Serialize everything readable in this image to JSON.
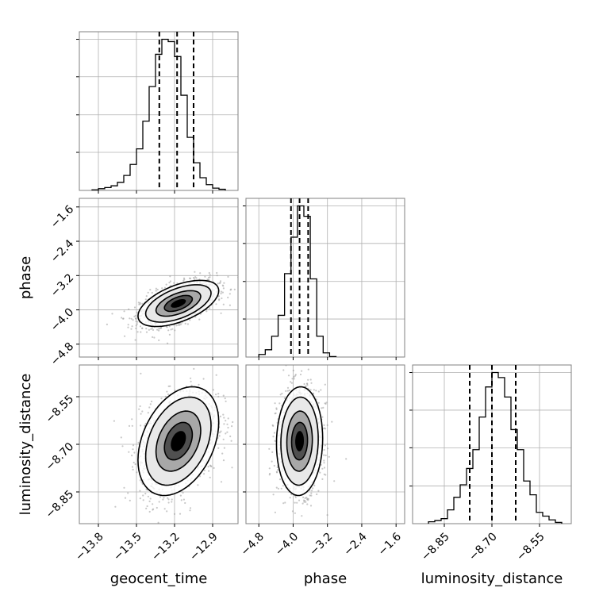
{
  "chart_data": {
    "type": "corner",
    "parameters": [
      {
        "name": "geocent_time",
        "range": [
          -13.95,
          -12.7
        ],
        "ticks": [
          -13.8,
          -13.5,
          -13.2,
          -12.9
        ],
        "tick_labels": [
          "−13.8",
          "−13.5",
          "−13.2",
          "−12.9"
        ],
        "quantiles": [
          -13.32,
          -13.18,
          -13.05
        ],
        "center": -13.17,
        "sd": 0.13
      },
      {
        "name": "phase",
        "range": [
          -5.1,
          -1.4
        ],
        "ticks": [
          -4.8,
          -4.0,
          -3.2,
          -2.4,
          -1.6
        ],
        "tick_labels": [
          "−4.8",
          "−4.0",
          "−3.2",
          "−2.4",
          "−1.6"
        ],
        "quantiles": [
          -4.05,
          -3.85,
          -3.65
        ],
        "center": -3.85,
        "sd": 0.22
      },
      {
        "name": "luminosity_distance",
        "range": [
          -8.95,
          -8.45
        ],
        "ticks": [
          -8.85,
          -8.7,
          -8.55
        ],
        "tick_labels": [
          "−8.85",
          "−8.70",
          "−8.55"
        ],
        "quantiles": [
          -8.77,
          -8.7,
          -8.625
        ],
        "center": -8.69,
        "sd": 0.07
      }
    ],
    "histograms": [
      {
        "param": "geocent_time",
        "edges": [
          -13.85,
          -13.8,
          -13.75,
          -13.7,
          -13.65,
          -13.6,
          -13.55,
          -13.5,
          -13.45,
          -13.4,
          -13.35,
          -13.3,
          -13.25,
          -13.2,
          -13.15,
          -13.1,
          -13.05,
          -13.0,
          -12.95,
          -12.9,
          -12.85,
          -12.8
        ],
        "counts": [
          1,
          3,
          5,
          8,
          14,
          26,
          45,
          72,
          120,
          180,
          236,
          262,
          258,
          232,
          165,
          92,
          48,
          22,
          10,
          4,
          2
        ]
      },
      {
        "param": "phase",
        "edges": [
          -4.8,
          -4.65,
          -4.5,
          -4.35,
          -4.2,
          -4.05,
          -3.9,
          -3.75,
          -3.6,
          -3.45,
          -3.3,
          -3.15,
          -3.0
        ],
        "counts": [
          5,
          14,
          40,
          80,
          160,
          230,
          290,
          270,
          150,
          40,
          8,
          1
        ]
      },
      {
        "param": "luminosity_distance",
        "edges": [
          -8.9,
          -8.88,
          -8.86,
          -8.84,
          -8.82,
          -8.8,
          -8.78,
          -8.76,
          -8.74,
          -8.72,
          -8.7,
          -8.68,
          -8.66,
          -8.64,
          -8.62,
          -8.6,
          -8.58,
          -8.56,
          -8.54,
          -8.52,
          -8.5,
          -8.48
        ],
        "counts": [
          3,
          5,
          8,
          22,
          42,
          62,
          88,
          118,
          170,
          218,
          241,
          233,
          202,
          150,
          118,
          68,
          46,
          18,
          12,
          6,
          2
        ]
      }
    ],
    "correlations": {
      "geocent_time|phase": 0.55,
      "geocent_time|luminosity_distance": 0.35,
      "phase|luminosity_distance": 0.05
    },
    "grid": true
  }
}
